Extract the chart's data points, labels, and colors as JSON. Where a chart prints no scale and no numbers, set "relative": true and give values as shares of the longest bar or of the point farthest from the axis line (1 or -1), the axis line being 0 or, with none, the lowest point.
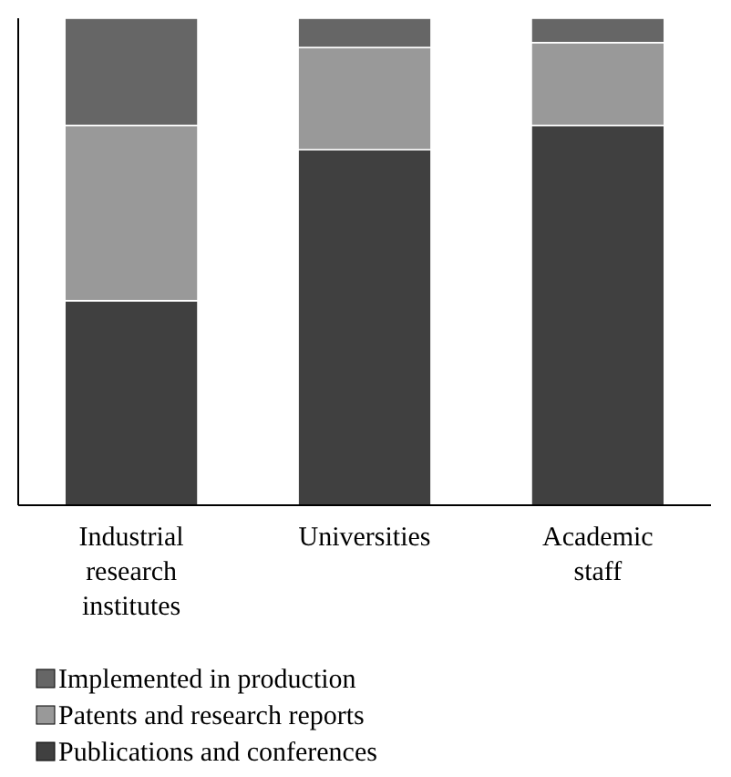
{
  "chart_data": {
    "type": "bar",
    "stacked": true,
    "relative": true,
    "legend": "bottom",
    "categories": [
      "Industrial research institutes",
      "Universities",
      "Academic staff"
    ],
    "series": [
      {
        "name": "Publications and conferences",
        "color": "#404040",
        "values": [
          0.42,
          0.73,
          0.78
        ]
      },
      {
        "name": "Patents and research reports",
        "color": "#999999",
        "values": [
          0.36,
          0.21,
          0.17
        ]
      },
      {
        "name": "Implemented in production",
        "color": "#666666",
        "values": [
          0.22,
          0.06,
          0.05
        ]
      }
    ]
  }
}
